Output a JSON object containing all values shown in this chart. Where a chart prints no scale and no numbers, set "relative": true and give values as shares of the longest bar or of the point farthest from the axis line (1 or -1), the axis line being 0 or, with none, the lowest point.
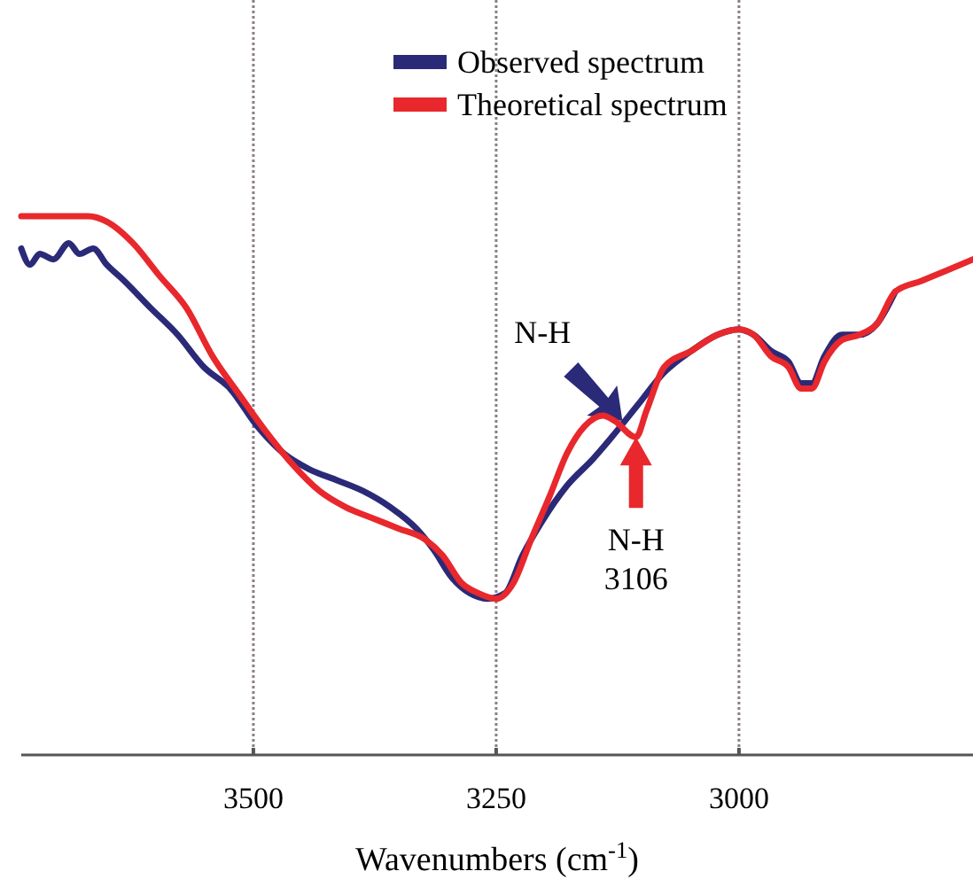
{
  "chart_data": {
    "type": "line",
    "relative": true,
    "xlabel": "Wavenumbers (cm$^{-1}$)",
    "xlim": [
      3739,
      2759
    ],
    "xticks": [
      3500,
      3250,
      3000
    ],
    "grid": "x",
    "legend": "top",
    "tick_labels": "x",
    "annotations": [
      {
        "text": "N-H",
        "x": 3120,
        "y": 0.62
      },
      {
        "text": "N-H\n3106",
        "x": 3106,
        "y": 0.59
      }
    ],
    "series": [
      {
        "name": "Observed spectrum",
        "color": "#2b2a78",
        "x": [
          3739,
          3730,
          3720,
          3706,
          3690,
          3679,
          3665,
          3651,
          3633,
          3606,
          3578,
          3551,
          3524,
          3496,
          3469,
          3442,
          3414,
          3387,
          3359,
          3332,
          3314,
          3296,
          3277,
          3259,
          3241,
          3223,
          3204,
          3177,
          3150,
          3131,
          3104,
          3077,
          3049,
          3022,
          3000,
          2985,
          2967,
          2949,
          2936,
          2925,
          2912,
          2894,
          2876,
          2858,
          2839
        ],
        "values": [
          0.94,
          0.91,
          0.93,
          0.92,
          0.95,
          0.93,
          0.94,
          0.91,
          0.88,
          0.83,
          0.78,
          0.72,
          0.68,
          0.61,
          0.56,
          0.53,
          0.51,
          0.49,
          0.46,
          0.42,
          0.38,
          0.33,
          0.3,
          0.29,
          0.3,
          0.37,
          0.43,
          0.5,
          0.55,
          0.59,
          0.65,
          0.71,
          0.75,
          0.78,
          0.79,
          0.78,
          0.75,
          0.73,
          0.69,
          0.69,
          0.74,
          0.78,
          0.78,
          0.8,
          0.86
        ]
      },
      {
        "name": "Theoretical spectrum",
        "color": "#e8282c",
        "x": [
          3739,
          3706,
          3670,
          3651,
          3624,
          3597,
          3569,
          3542,
          3515,
          3487,
          3460,
          3432,
          3405,
          3378,
          3350,
          3323,
          3305,
          3286,
          3268,
          3250,
          3232,
          3214,
          3195,
          3177,
          3159,
          3140,
          3128,
          3106,
          3095,
          3077,
          3049,
          3022,
          3000,
          2985,
          2967,
          2949,
          2936,
          2925,
          2912,
          2894,
          2876,
          2858,
          2839,
          2812,
          2785,
          2759
        ],
        "values": [
          1.0,
          1.0,
          1.0,
          0.99,
          0.95,
          0.89,
          0.83,
          0.74,
          0.67,
          0.6,
          0.54,
          0.49,
          0.46,
          0.44,
          0.42,
          0.4,
          0.37,
          0.32,
          0.3,
          0.29,
          0.32,
          0.4,
          0.48,
          0.56,
          0.61,
          0.63,
          0.62,
          0.59,
          0.64,
          0.72,
          0.75,
          0.78,
          0.79,
          0.78,
          0.74,
          0.72,
          0.68,
          0.68,
          0.73,
          0.77,
          0.78,
          0.8,
          0.86,
          0.88,
          0.9,
          0.92
        ]
      }
    ]
  }
}
